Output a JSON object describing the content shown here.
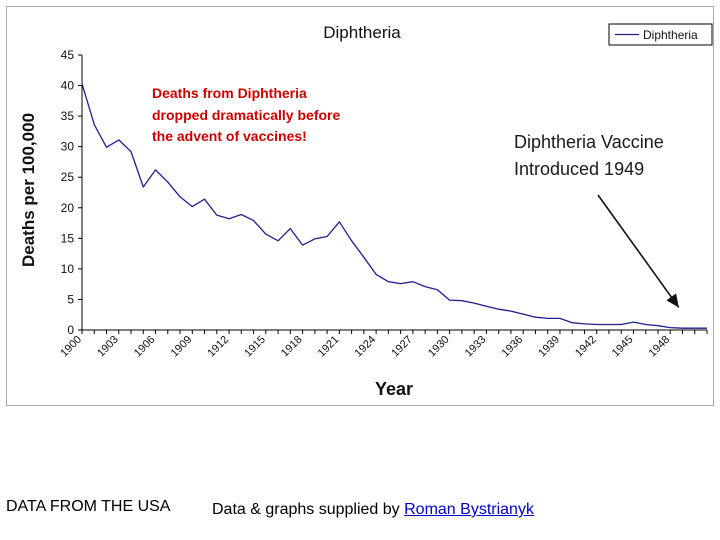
{
  "chart_data": {
    "type": "line",
    "title": "Diphtheria",
    "xlabel": "Year",
    "ylabel": "Deaths per 100,000",
    "ylim": [
      0,
      45
    ],
    "yticks": [
      0,
      5,
      10,
      15,
      20,
      25,
      30,
      35,
      40,
      45
    ],
    "xlim": [
      1900,
      1951
    ],
    "xticks": [
      "1900",
      "1903",
      "1906",
      "1909",
      "1912",
      "1915",
      "1918",
      "1921",
      "1924",
      "1927",
      "1930",
      "1933",
      "1936",
      "1939",
      "1942",
      "1945",
      "1948"
    ],
    "grid": false,
    "legend": {
      "position": "top-right",
      "entries": [
        "Diphtheria"
      ]
    },
    "series": [
      {
        "name": "Diphtheria",
        "color": "#1f1f8f",
        "x": [
          1900,
          1901,
          1902,
          1903,
          1904,
          1905,
          1906,
          1907,
          1908,
          1909,
          1910,
          1911,
          1912,
          1913,
          1914,
          1915,
          1916,
          1917,
          1918,
          1919,
          1920,
          1921,
          1922,
          1923,
          1924,
          1925,
          1926,
          1927,
          1928,
          1929,
          1930,
          1931,
          1932,
          1933,
          1934,
          1935,
          1936,
          1937,
          1938,
          1939,
          1940,
          1941,
          1942,
          1943,
          1944,
          1945,
          1946,
          1947,
          1948,
          1949,
          1950,
          1951
        ],
        "y": [
          40.3,
          33.6,
          29.9,
          31.1,
          29.2,
          23.4,
          26.2,
          24.2,
          21.8,
          20.2,
          21.4,
          18.8,
          18.2,
          18.9,
          17.9,
          15.7,
          14.6,
          16.6,
          13.9,
          14.9,
          15.3,
          17.7,
          14.6,
          11.9,
          9.1,
          7.9,
          7.6,
          7.9,
          7.1,
          6.6,
          4.9,
          4.8,
          4.4,
          3.9,
          3.4,
          3.1,
          2.6,
          2.1,
          1.9,
          1.9,
          1.2,
          1.0,
          0.9,
          0.9,
          0.9,
          1.3,
          0.9,
          0.7,
          0.4,
          0.3,
          0.3,
          0.3
        ]
      }
    ],
    "annotations": [
      {
        "text": [
          "Deaths from Diphtheria",
          "dropped dramatically before",
          "the advent of vaccines!"
        ],
        "color": "#cc0000"
      },
      {
        "text": [
          "Diphtheria Vaccine",
          "Introduced 1949"
        ],
        "color": "#1a1a1a",
        "arrow_to": {
          "x": 1948.7,
          "y": 1.4
        }
      }
    ]
  },
  "footer": {
    "source_note": "DATA  FROM THE USA",
    "credit_prefix": "Data & graphs supplied by ",
    "credit_link": "Roman Bystrianyk"
  }
}
